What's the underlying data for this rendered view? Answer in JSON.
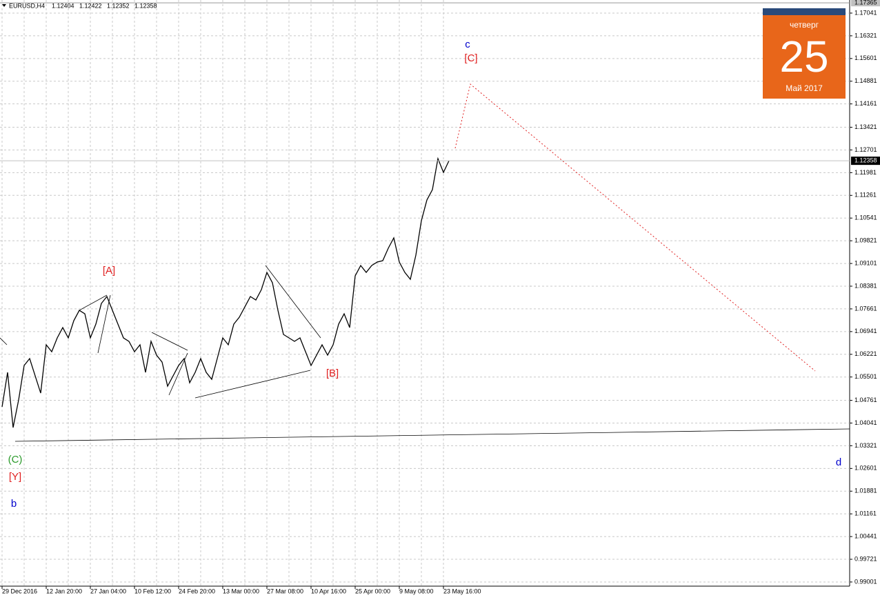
{
  "chart_data": {
    "type": "line",
    "title": "EURUSD,H4",
    "ohlc": [
      1.12404,
      1.12422,
      1.12352,
      1.12358
    ],
    "current_price": 1.12358,
    "high_marker": 1.17365,
    "grid": true,
    "categories": [
      "29 Dec 2016",
      null,
      null,
      null,
      null,
      null,
      null,
      null,
      "12 Jan 20:00",
      null,
      null,
      null,
      null,
      null,
      null,
      null,
      "27 Jan 04:00",
      null,
      null,
      null,
      null,
      null,
      null,
      null,
      "10 Feb 12:00",
      null,
      null,
      null,
      null,
      null,
      null,
      null,
      "24 Feb 20:00",
      null,
      null,
      null,
      null,
      null,
      null,
      null,
      "13 Mar 00:00",
      null,
      null,
      null,
      null,
      null,
      null,
      null,
      "27 Mar 08:00",
      null,
      null,
      null,
      null,
      null,
      null,
      null,
      "10 Apr 16:00",
      null,
      null,
      null,
      null,
      null,
      null,
      null,
      "25 Apr 00:00",
      null,
      null,
      null,
      null,
      null,
      null,
      null,
      "9 May 08:00",
      null,
      null,
      null,
      null,
      null,
      null,
      null,
      "23 May 16:00",
      null
    ],
    "series": [
      {
        "name": "EURUSD,H4",
        "color": "#000000",
        "values": [
          1.04554,
          1.05647,
          1.03898,
          1.04773,
          1.05866,
          1.06085,
          1.05538,
          1.04991,
          1.06522,
          1.06303,
          1.06741,
          1.07069,
          1.06741,
          1.07287,
          1.07615,
          1.07506,
          1.06741,
          1.07178,
          1.07834,
          1.08053,
          1.07615,
          1.07178,
          1.06741,
          1.06631,
          1.06303,
          1.06522,
          1.05647,
          1.06631,
          1.06194,
          1.05975,
          1.0521,
          1.05538,
          1.05866,
          1.06085,
          1.05319,
          1.05647,
          1.06085,
          1.05647,
          1.05428,
          1.06085,
          1.06741,
          1.06522,
          1.07178,
          1.07397,
          1.07725,
          1.08053,
          1.07943,
          1.08271,
          1.08818,
          1.0849,
          1.07615,
          1.0685,
          1.06741,
          1.06631,
          1.06741,
          1.06303,
          1.05866,
          1.06194,
          1.06522,
          1.06194,
          1.06522,
          1.07178,
          1.07506,
          1.07069,
          1.08709,
          1.09037,
          1.08818,
          1.09037,
          1.09146,
          1.0919,
          1.09584,
          1.09912,
          1.09146,
          1.08818,
          1.086,
          1.09365,
          1.10458,
          1.11114,
          1.11442,
          1.12427,
          1.11989,
          1.12358
        ]
      }
    ],
    "ylim": [
      0.98869,
      1.17456
    ],
    "yticks": [
      1.17041,
      1.16321,
      1.15601,
      1.14881,
      1.14161,
      1.13421,
      1.12701,
      1.11981,
      1.11261,
      1.10541,
      1.09821,
      1.09101,
      1.08381,
      1.07661,
      1.06941,
      1.06221,
      1.05501,
      1.04761,
      1.04041,
      1.03321,
      1.02601,
      1.01881,
      1.01161,
      1.00441,
      0.99721,
      0.99001
    ],
    "annotations": [
      {
        "text": "[A]",
        "color": "#e02020"
      },
      {
        "text": "[B]",
        "color": "#e02020"
      },
      {
        "text": "c",
        "color": "#0000cc"
      },
      {
        "text": "[C]",
        "color": "#e02020"
      },
      {
        "text": "(C)",
        "color": "#2a9a2a"
      },
      {
        "text": "[Y]",
        "color": "#e02020"
      },
      {
        "text": "b",
        "color": "#0000cc"
      },
      {
        "text": "d",
        "color": "#0000cc"
      }
    ],
    "calendar": {
      "weekday": "четверг",
      "day": 25,
      "month_year": "Май 2017"
    }
  }
}
